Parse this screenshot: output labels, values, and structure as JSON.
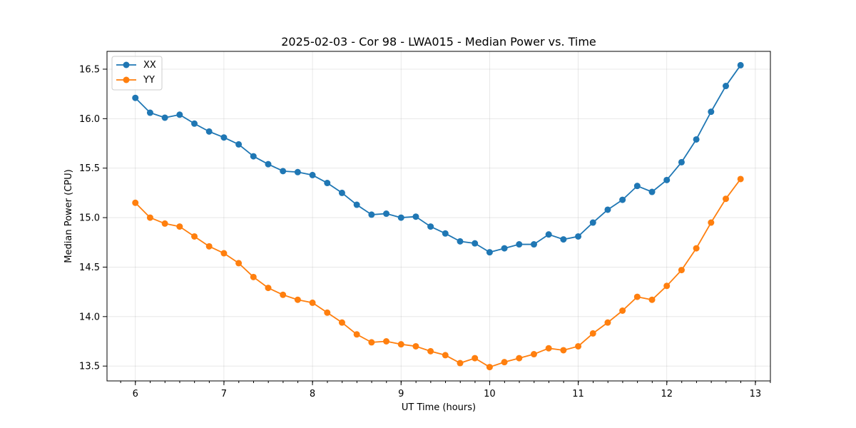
{
  "chart_data": {
    "type": "line",
    "title": "2025-02-03 - Cor 98 - LWA015 - Median Power vs. Time",
    "xlabel": "UT Time (hours)",
    "ylabel": "Median Power (CPU)",
    "xlim": [
      5.68,
      13.17
    ],
    "ylim": [
      13.35,
      16.68
    ],
    "xticks": [
      6,
      7,
      8,
      9,
      10,
      11,
      12,
      13
    ],
    "xtick_labels": [
      "6",
      "7",
      "8",
      "9",
      "10",
      "11",
      "12",
      "13"
    ],
    "yticks": [
      13.5,
      14.0,
      14.5,
      15.0,
      15.5,
      16.0,
      16.5
    ],
    "ytick_labels": [
      "13.5",
      "14.0",
      "14.5",
      "15.0",
      "15.5",
      "16.0",
      "16.5"
    ],
    "x_minor_step": 0.1667,
    "grid": true,
    "legend_position": "upper-left",
    "x": [
      6.0,
      6.1667,
      6.3333,
      6.5,
      6.6667,
      6.8333,
      7.0,
      7.1667,
      7.3333,
      7.5,
      7.6667,
      7.8333,
      8.0,
      8.1667,
      8.3333,
      8.5,
      8.6667,
      8.8333,
      9.0,
      9.1667,
      9.3333,
      9.5,
      9.6667,
      9.8333,
      10.0,
      10.1667,
      10.3333,
      10.5,
      10.6667,
      10.8333,
      11.0,
      11.1667,
      11.3333,
      11.5,
      11.6667,
      11.8333,
      12.0,
      12.1667,
      12.3333,
      12.5,
      12.6667,
      12.8333
    ],
    "series": [
      {
        "name": "XX",
        "color": "#1f77b4",
        "values": [
          16.21,
          16.06,
          16.01,
          16.04,
          15.95,
          15.87,
          15.81,
          15.74,
          15.62,
          15.54,
          15.47,
          15.46,
          15.43,
          15.35,
          15.25,
          15.13,
          15.03,
          15.04,
          15.0,
          15.01,
          14.91,
          14.84,
          14.76,
          14.74,
          14.65,
          14.69,
          14.73,
          14.73,
          14.83,
          14.78,
          14.81,
          14.95,
          15.08,
          15.18,
          15.32,
          15.26,
          15.38,
          15.56,
          15.79,
          16.07,
          16.33,
          16.54
        ]
      },
      {
        "name": "YY",
        "color": "#ff7f0e",
        "values": [
          15.15,
          15.0,
          14.94,
          14.91,
          14.81,
          14.71,
          14.64,
          14.54,
          14.4,
          14.29,
          14.22,
          14.17,
          14.14,
          14.04,
          13.94,
          13.82,
          13.74,
          13.75,
          13.72,
          13.7,
          13.65,
          13.61,
          13.53,
          13.58,
          13.49,
          13.54,
          13.58,
          13.62,
          13.68,
          13.66,
          13.7,
          13.83,
          13.94,
          14.06,
          14.2,
          14.17,
          14.31,
          14.47,
          14.69,
          14.95,
          15.19,
          15.39
        ]
      }
    ]
  }
}
